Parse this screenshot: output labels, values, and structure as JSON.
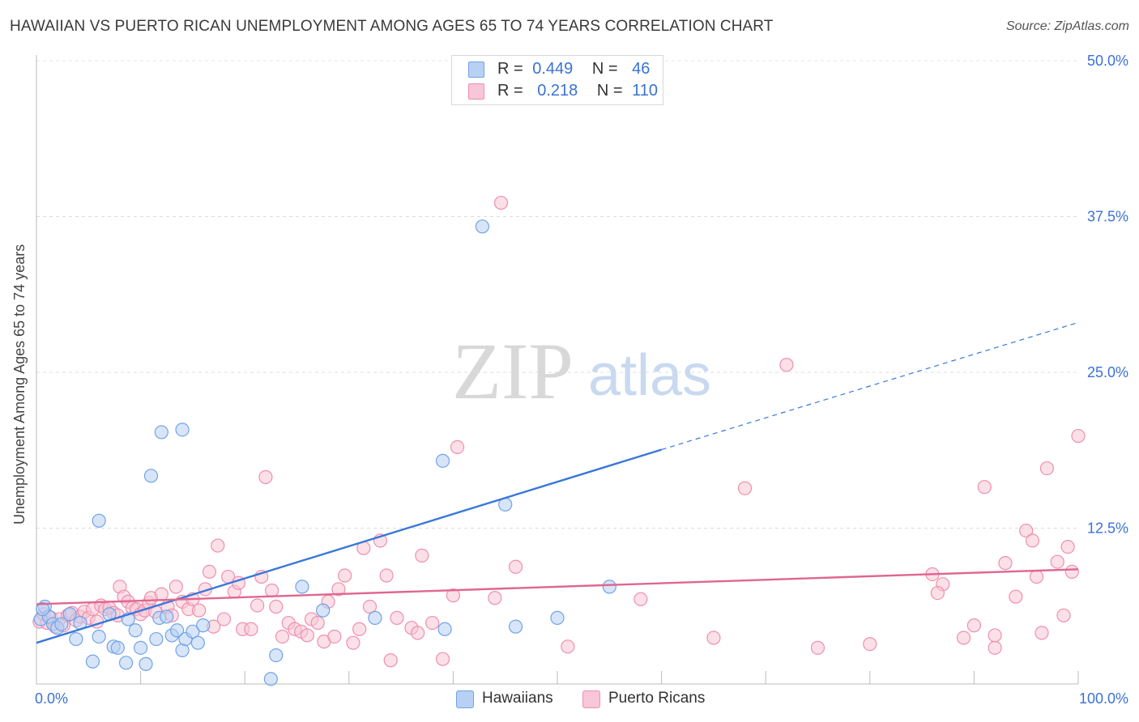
{
  "title": "HAWAIIAN VS PUERTO RICAN UNEMPLOYMENT AMONG AGES 65 TO 74 YEARS CORRELATION CHART",
  "source": "Source: ZipAtlas.com",
  "watermark": {
    "zip": "ZIP",
    "atlas": "atlas"
  },
  "legend_top": {
    "rows": [
      {
        "r_label": "R =",
        "r_value": "0.449",
        "n_label": "N =",
        "n_value": "46",
        "color": "#6fa3e8",
        "fill": "#b8d0f3"
      },
      {
        "r_label": "R =",
        "r_value": "0.218",
        "n_label": "N =",
        "n_value": "110",
        "color": "#ef8fae",
        "fill": "#f8c6d6"
      }
    ]
  },
  "legend_bottom": [
    {
      "label": "Hawaiians",
      "color": "#6fa3e8",
      "fill": "#b8d0f3"
    },
    {
      "label": "Puerto Ricans",
      "color": "#ef8fae",
      "fill": "#f8c6d6"
    }
  ],
  "chart_data": {
    "type": "scatter",
    "title": "HAWAIIAN VS PUERTO RICAN UNEMPLOYMENT AMONG AGES 65 TO 74 YEARS CORRELATION CHART",
    "xlabel": "",
    "ylabel": "Unemployment Among Ages 65 to 74 years",
    "xlim": [
      0,
      100
    ],
    "ylim": [
      0,
      50
    ],
    "x_tick_labels": [
      "0.0%",
      "100.0%"
    ],
    "y_ticks": [
      12.5,
      25.0,
      37.5,
      50.0
    ],
    "y_tick_labels": [
      "12.5%",
      "25.0%",
      "37.5%",
      "50.0%"
    ],
    "grid": true,
    "legend_placement": "top-center",
    "series": [
      {
        "name": "Hawaiians",
        "color": "#3a78d8",
        "marker_stroke": "#6fa3e8",
        "marker_fill": "#b8d0f3",
        "points": [
          [
            0.4,
            5.2
          ],
          [
            0.8,
            6.2
          ],
          [
            1.2,
            5.4
          ],
          [
            1.6,
            4.8
          ],
          [
            2.0,
            4.5
          ],
          [
            2.4,
            4.8
          ],
          [
            3.2,
            5.6
          ],
          [
            3.8,
            3.6
          ],
          [
            4.2,
            4.9
          ],
          [
            5.4,
            1.8
          ],
          [
            6.0,
            3.8
          ],
          [
            7.0,
            5.6
          ],
          [
            7.4,
            3.0
          ],
          [
            7.8,
            2.9
          ],
          [
            8.6,
            1.7
          ],
          [
            8.8,
            5.2
          ],
          [
            9.5,
            4.3
          ],
          [
            10.0,
            2.9
          ],
          [
            10.5,
            1.6
          ],
          [
            11.0,
            16.7
          ],
          [
            11.5,
            3.6
          ],
          [
            11.8,
            5.3
          ],
          [
            12.0,
            20.2
          ],
          [
            12.5,
            5.4
          ],
          [
            13.0,
            3.9
          ],
          [
            13.5,
            4.3
          ],
          [
            14.0,
            2.7
          ],
          [
            14.3,
            3.6
          ],
          [
            15.0,
            4.2
          ],
          [
            15.5,
            3.3
          ],
          [
            16.0,
            4.7
          ],
          [
            6.0,
            13.1
          ],
          [
            14.0,
            20.4
          ],
          [
            22.5,
            0.4
          ],
          [
            23.0,
            2.3
          ],
          [
            25.5,
            7.8
          ],
          [
            27.5,
            5.9
          ],
          [
            32.5,
            5.3
          ],
          [
            39.0,
            17.9
          ],
          [
            39.2,
            4.4
          ],
          [
            42.8,
            36.7
          ],
          [
            45.0,
            14.4
          ],
          [
            46.0,
            4.6
          ],
          [
            50.0,
            5.3
          ],
          [
            55.0,
            7.8
          ],
          [
            0.6,
            6.0
          ]
        ],
        "trend": {
          "x0": 0,
          "y0": 3.3,
          "x1": 60,
          "y1": 18.8,
          "dashed_to_x": 100,
          "dashed_to_y": 29.0
        }
      },
      {
        "name": "Puerto Ricans",
        "color": "#e0668f",
        "marker_stroke": "#ef8fae",
        "marker_fill": "#f8c6d6",
        "points": [
          [
            0.3,
            5.0
          ],
          [
            0.7,
            5.6
          ],
          [
            1.0,
            4.9
          ],
          [
            1.4,
            5.3
          ],
          [
            1.8,
            4.6
          ],
          [
            2.2,
            5.2
          ],
          [
            2.6,
            4.7
          ],
          [
            3.0,
            5.5
          ],
          [
            3.4,
            5.7
          ],
          [
            3.8,
            5.1
          ],
          [
            4.2,
            5.4
          ],
          [
            4.6,
            5.8
          ],
          [
            5.0,
            5.3
          ],
          [
            5.4,
            6.0
          ],
          [
            5.8,
            5.0
          ],
          [
            6.2,
            6.3
          ],
          [
            6.6,
            6.0
          ],
          [
            7.0,
            6.1
          ],
          [
            7.4,
            5.7
          ],
          [
            7.8,
            5.5
          ],
          [
            8.0,
            7.8
          ],
          [
            8.4,
            7.0
          ],
          [
            8.8,
            6.6
          ],
          [
            9.2,
            6.1
          ],
          [
            9.6,
            6.0
          ],
          [
            10.0,
            5.6
          ],
          [
            10.4,
            5.9
          ],
          [
            10.8,
            6.5
          ],
          [
            11.0,
            6.9
          ],
          [
            11.4,
            5.8
          ],
          [
            12.0,
            7.2
          ],
          [
            12.6,
            6.2
          ],
          [
            13.0,
            5.5
          ],
          [
            13.4,
            7.8
          ],
          [
            14.0,
            6.6
          ],
          [
            14.6,
            6.0
          ],
          [
            15.0,
            6.8
          ],
          [
            15.6,
            5.9
          ],
          [
            16.2,
            7.6
          ],
          [
            16.6,
            9.0
          ],
          [
            17.0,
            4.6
          ],
          [
            17.4,
            11.1
          ],
          [
            18.0,
            5.2
          ],
          [
            18.4,
            8.6
          ],
          [
            19.0,
            7.4
          ],
          [
            19.4,
            8.1
          ],
          [
            19.8,
            4.4
          ],
          [
            20.6,
            4.4
          ],
          [
            21.2,
            6.3
          ],
          [
            21.6,
            8.6
          ],
          [
            22.0,
            16.6
          ],
          [
            22.6,
            7.5
          ],
          [
            23.0,
            6.2
          ],
          [
            23.6,
            3.8
          ],
          [
            24.2,
            4.9
          ],
          [
            24.8,
            4.4
          ],
          [
            25.4,
            4.2
          ],
          [
            26.0,
            3.9
          ],
          [
            26.4,
            5.2
          ],
          [
            27.0,
            4.9
          ],
          [
            27.6,
            3.4
          ],
          [
            28.0,
            6.6
          ],
          [
            28.6,
            3.8
          ],
          [
            29.0,
            7.6
          ],
          [
            29.6,
            8.7
          ],
          [
            30.4,
            3.3
          ],
          [
            31.0,
            4.4
          ],
          [
            31.4,
            10.9
          ],
          [
            32.0,
            6.2
          ],
          [
            33.0,
            11.5
          ],
          [
            33.6,
            8.7
          ],
          [
            34.0,
            1.9
          ],
          [
            34.6,
            5.3
          ],
          [
            36.0,
            4.5
          ],
          [
            36.6,
            4.1
          ],
          [
            37.0,
            10.3
          ],
          [
            38.0,
            4.9
          ],
          [
            39.0,
            2.0
          ],
          [
            40.4,
            19.0
          ],
          [
            40.0,
            7.1
          ],
          [
            44.0,
            6.9
          ],
          [
            44.6,
            38.6
          ],
          [
            46.0,
            9.4
          ],
          [
            51.0,
            3.0
          ],
          [
            58.0,
            6.8
          ],
          [
            65.0,
            3.7
          ],
          [
            68.0,
            15.7
          ],
          [
            72.0,
            25.6
          ],
          [
            75.0,
            2.9
          ],
          [
            80.0,
            3.2
          ],
          [
            86.0,
            8.8
          ],
          [
            87.0,
            8.0
          ],
          [
            89.0,
            3.7
          ],
          [
            90.0,
            4.7
          ],
          [
            91.0,
            15.8
          ],
          [
            92.0,
            2.9
          ],
          [
            92.0,
            3.9
          ],
          [
            93.0,
            9.7
          ],
          [
            94.0,
            7.0
          ],
          [
            95.0,
            12.3
          ],
          [
            95.6,
            11.5
          ],
          [
            96.0,
            8.6
          ],
          [
            97.0,
            17.3
          ],
          [
            98.0,
            9.8
          ],
          [
            98.6,
            5.5
          ],
          [
            99.0,
            11.0
          ],
          [
            99.4,
            9.0
          ],
          [
            100.0,
            19.9
          ],
          [
            86.5,
            7.3
          ],
          [
            96.5,
            4.1
          ]
        ],
        "trend": {
          "x0": 0,
          "y0": 6.4,
          "x1": 100,
          "y1": 9.2
        }
      }
    ]
  }
}
